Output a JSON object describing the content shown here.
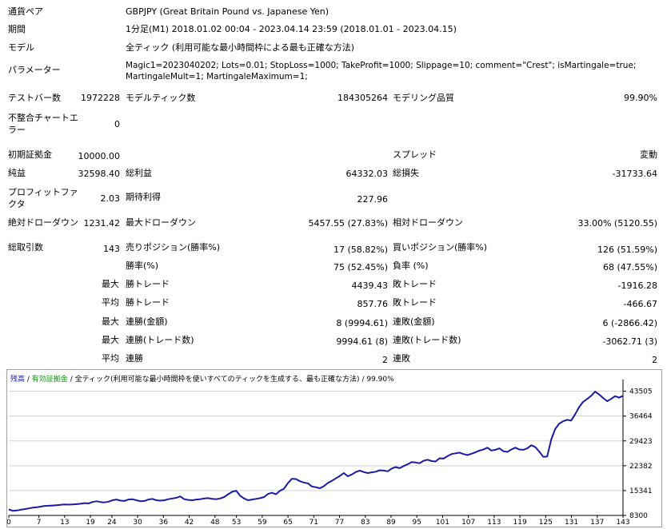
{
  "report": {
    "symbol_label": "通貨ペア",
    "symbol_value": "GBPJPY (Great Britain Pound vs. Japanese Yen)",
    "period_label": "期間",
    "period_value": "1分足(M1) 2018.01.02 00:04 - 2023.04.14 23:59 (2018.01.01 - 2023.04.15)",
    "model_label": "モデル",
    "model_value": "全ティック (利用可能な最小時間枠による最も正確な方法)",
    "params_label": "パラメーター",
    "params_value": "Magic1=2023040202; Lots=0.01; StopLoss=1000; TakeProfit=1000; Slippage=10; comment=\"Crest\"; isMartingale=true; MartingaleMult=1; MartingaleMaximum=1;",
    "bars_label": "テストバー数",
    "bars_value": "1972228",
    "ticks_label": "モデルティック数",
    "ticks_value": "184305264",
    "quality_label": "モデリング品質",
    "quality_value": "99.90%",
    "mismatch_label": "不整合チャートエラー",
    "mismatch_value": "0",
    "deposit_label": "初期証拠金",
    "deposit_value": "10000.00",
    "spread_label": "スプレッド",
    "spread_value": "変動",
    "net_label": "純益",
    "net_value": "32598.40",
    "gross_profit_label": "総利益",
    "gross_profit_value": "64332.03",
    "gross_loss_label": "総損失",
    "gross_loss_value": "-31733.64",
    "pf_label": "プロフィットファクタ",
    "pf_value": "2.03",
    "expected_label": "期待利得",
    "expected_value": "227.96",
    "abs_dd_label": "絶対ドローダウン",
    "abs_dd_value": "1231.42",
    "max_dd_label": "最大ドローダウン",
    "max_dd_value": "5457.55 (27.83%)",
    "rel_dd_label": "相対ドローダウン",
    "rel_dd_value": "33.00% (5120.55)",
    "trades_label": "総取引数",
    "trades_value": "143",
    "short_label": "売りポジション(勝率%)",
    "short_value": "17 (58.82%)",
    "long_label": "買いポジション(勝率%)",
    "long_value": "126 (51.59%)",
    "win_label": "勝率(%)",
    "win_value": "75 (52.45%)",
    "loss_label": "負率 (%)",
    "loss_value": "68 (47.55%)",
    "max_prefix": "最大",
    "avg_prefix": "平均",
    "largest_win_label": "勝トレード",
    "largest_win_value": "4439.43",
    "largest_loss_label": "敗トレード",
    "largest_loss_value": "-1916.28",
    "avg_win_label": "勝トレード",
    "avg_win_value": "857.76",
    "avg_loss_label": "敗トレード",
    "avg_loss_value": "-466.67",
    "cons_wins_amt_label": "連勝(金額)",
    "cons_wins_amt_value": "8 (9994.61)",
    "cons_loss_amt_label": "連敗(金額)",
    "cons_loss_amt_value": "6 (-2866.42)",
    "cons_wins_tr_label": "連勝(トレード数)",
    "cons_wins_tr_value": "9994.61 (8)",
    "cons_loss_tr_label": "連敗(トレード数)",
    "cons_loss_tr_value": "-3062.71 (3)",
    "avg_cons_win_label": "連勝",
    "avg_cons_win_value": "2",
    "avg_cons_loss_label": "連敗",
    "avg_cons_loss_value": "2"
  },
  "chart_header": {
    "balance": "残高",
    "equity": "有効証拠金",
    "model": "全ティック(利用可能な最小時間枠を使いすべてのティックを生成する、最も正確な方法)",
    "quality": "99.90%"
  },
  "colors": {
    "line": "#1a1aa6",
    "grid": "#d0d0d0"
  },
  "chart_data": {
    "type": "line",
    "x_ticks": [
      "0",
      "7",
      "13",
      "19",
      "24",
      "30",
      "36",
      "42",
      "48",
      "53",
      "59",
      "65",
      "71",
      "77",
      "83",
      "89",
      "95",
      "101",
      "107",
      "113",
      "119",
      "125",
      "131",
      "137",
      "143"
    ],
    "y_ticks": [
      "8300",
      "15341",
      "22382",
      "29423",
      "36464",
      "43505"
    ],
    "ylim": [
      8300,
      45000
    ],
    "xlim": [
      0,
      143
    ],
    "series": [
      {
        "values": [
          10000,
          9600,
          9700,
          9900,
          10100,
          10300,
          10500,
          10600,
          10800,
          11000,
          11050,
          11100,
          11200,
          11300,
          11400,
          11350,
          11400,
          11500,
          11600,
          11800,
          11700,
          12100,
          12300,
          12100,
          12000,
          12200,
          12600,
          12800,
          12500,
          12400,
          12800,
          12900,
          12600,
          12300,
          12400,
          12800,
          13000,
          12600,
          12500,
          12600,
          12900,
          13100,
          13300,
          13700,
          12900,
          12700,
          12600,
          12800,
          12900,
          13100,
          13200,
          13000,
          12900,
          13100,
          13500,
          14300,
          15000,
          15300,
          13900,
          13100,
          12600,
          12800,
          13000,
          13200,
          13500,
          14400,
          14700,
          14300,
          15300,
          15900,
          17500,
          18700,
          18600,
          18000,
          17600,
          17400,
          16500,
          16300,
          16000,
          16600,
          17500,
          18100,
          18800,
          19500,
          20300,
          19400,
          19900,
          20600,
          21000,
          20600,
          20300,
          20500,
          20700,
          21100,
          21000,
          20800,
          21600,
          22000,
          21700,
          22300,
          22800,
          23400,
          23300,
          23100,
          23800,
          24100,
          23700,
          23600,
          24500,
          24400,
          25100,
          25700,
          25900,
          26100,
          25700,
          25400,
          25800,
          26200,
          26700,
          27000,
          27500,
          26700,
          26900,
          27300,
          26500,
          26300,
          27000,
          27500,
          27000,
          26900,
          27300,
          28200,
          27700,
          26400,
          24900,
          25000,
          29800,
          32800,
          34300,
          35000,
          35400,
          35200,
          37000,
          39000,
          40500,
          41300,
          42200,
          43400,
          42600,
          41600,
          40700,
          41300,
          42100,
          41700,
          42200
        ]
      }
    ]
  }
}
